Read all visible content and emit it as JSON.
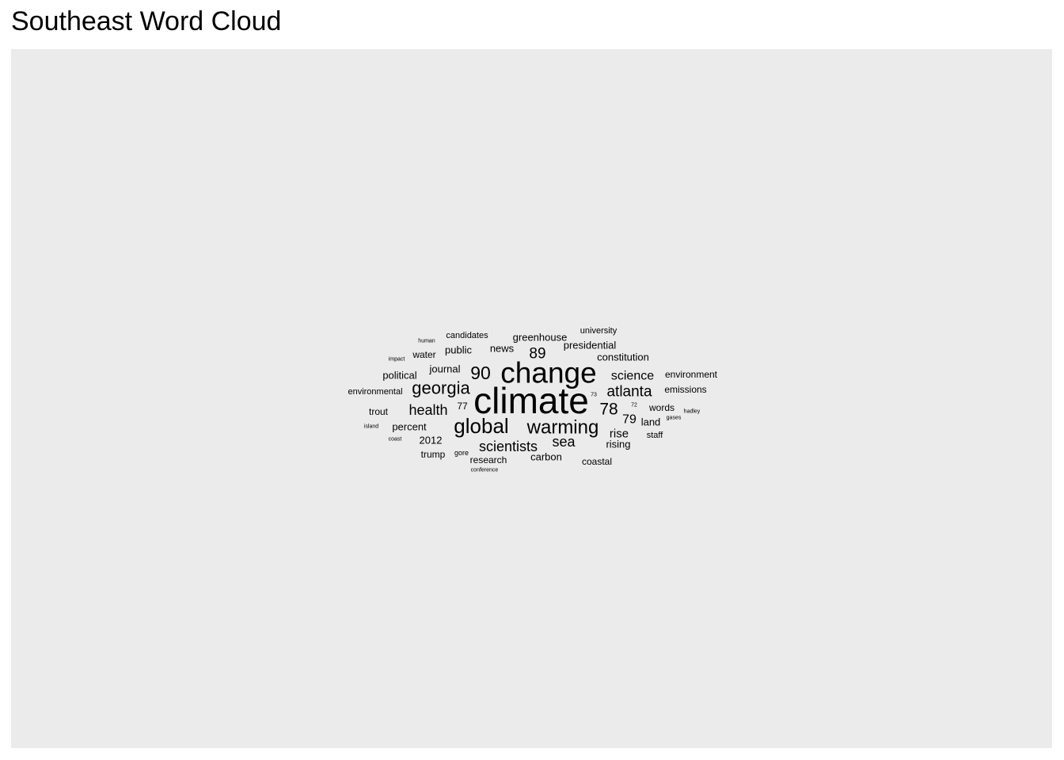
{
  "page_title": "Southeast Word Cloud",
  "chart_data": {
    "type": "wordcloud",
    "title": "Southeast Word Cloud",
    "background": "#EBEBEB",
    "text_color": "#000000",
    "words": [
      {
        "word": "climate",
        "freq": 100
      },
      {
        "word": "change",
        "freq": 88
      },
      {
        "word": "global",
        "freq": 60
      },
      {
        "word": "warming",
        "freq": 55
      },
      {
        "word": "georgia",
        "freq": 50
      },
      {
        "word": "90",
        "freq": 50
      },
      {
        "word": "78",
        "freq": 48
      },
      {
        "word": "atlanta",
        "freq": 45
      },
      {
        "word": "health",
        "freq": 43
      },
      {
        "word": "89",
        "freq": 42
      },
      {
        "word": "scientists",
        "freq": 42
      },
      {
        "word": "sea",
        "freq": 40
      },
      {
        "word": "science",
        "freq": 38
      },
      {
        "word": "79",
        "freq": 35
      },
      {
        "word": "rise",
        "freq": 33
      },
      {
        "word": "presidential",
        "freq": 32
      },
      {
        "word": "greenhouse",
        "freq": 32
      },
      {
        "word": "constitution",
        "freq": 32
      },
      {
        "word": "journal",
        "freq": 32
      },
      {
        "word": "news",
        "freq": 32
      },
      {
        "word": "public",
        "freq": 32
      },
      {
        "word": "carbon",
        "freq": 32
      },
      {
        "word": "percent",
        "freq": 32
      },
      {
        "word": "political",
        "freq": 32
      },
      {
        "word": "words",
        "freq": 30
      },
      {
        "word": "land",
        "freq": 30
      },
      {
        "word": "rising",
        "freq": 30
      },
      {
        "word": "research",
        "freq": 30
      },
      {
        "word": "2012",
        "freq": 30
      },
      {
        "word": "water",
        "freq": 30
      },
      {
        "word": "trout",
        "freq": 28
      },
      {
        "word": "trump",
        "freq": 28
      },
      {
        "word": "coastal",
        "freq": 28
      },
      {
        "word": "emissions",
        "freq": 28
      },
      {
        "word": "environment",
        "freq": 28
      },
      {
        "word": "environmental",
        "freq": 28
      },
      {
        "word": "candidates",
        "freq": 28
      },
      {
        "word": "university",
        "freq": 26
      },
      {
        "word": "staff",
        "freq": 26
      },
      {
        "word": "77",
        "freq": 28
      },
      {
        "word": "gore",
        "freq": 22
      },
      {
        "word": "72",
        "freq": 18
      },
      {
        "word": "73",
        "freq": 18
      },
      {
        "word": "hadley",
        "freq": 18
      },
      {
        "word": "gases",
        "freq": 16
      },
      {
        "word": "human",
        "freq": 16
      },
      {
        "word": "impact",
        "freq": 16
      },
      {
        "word": "island",
        "freq": 16
      },
      {
        "word": "coast",
        "freq": 16
      },
      {
        "word": "conference",
        "freq": 16
      }
    ]
  }
}
